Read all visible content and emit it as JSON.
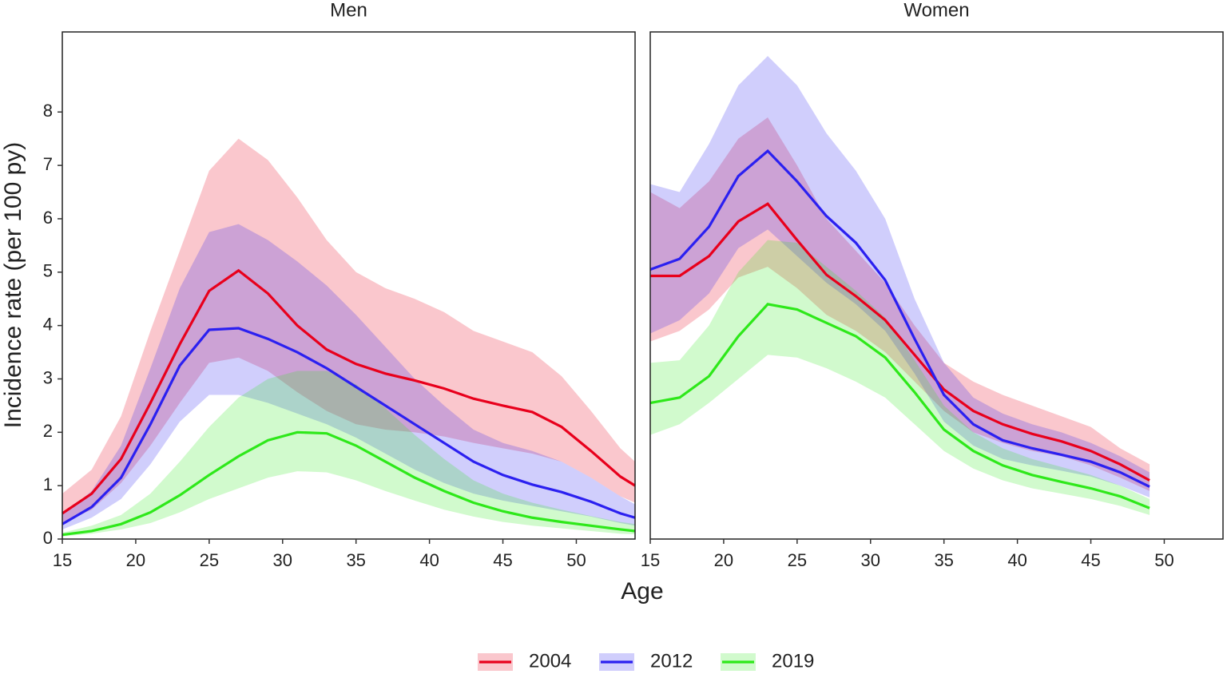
{
  "chart_data": [
    {
      "type": "line",
      "title": "Men",
      "xlabel": "Age",
      "ylabel": "Incidence rate (per 100 py)",
      "x": [
        15,
        17,
        19,
        21,
        23,
        25,
        27,
        29,
        31,
        33,
        35,
        37,
        39,
        41,
        43,
        45,
        47,
        49,
        51,
        53,
        54
      ],
      "xlim": [
        15,
        54
      ],
      "ylim": [
        0,
        9.5
      ],
      "xticks": [
        15,
        20,
        25,
        30,
        35,
        40,
        45,
        50
      ],
      "yticks": [
        0,
        1,
        2,
        3,
        4,
        5,
        6,
        7,
        8
      ],
      "series": [
        {
          "name": "2004",
          "color": "#e8001c",
          "values": [
            0.48,
            0.85,
            1.5,
            2.55,
            3.65,
            4.65,
            5.03,
            4.6,
            4.0,
            3.55,
            3.28,
            3.1,
            2.97,
            2.82,
            2.63,
            2.5,
            2.38,
            2.1,
            1.65,
            1.17,
            1.0
          ],
          "upper": [
            0.85,
            1.3,
            2.3,
            3.9,
            5.4,
            6.9,
            7.5,
            7.1,
            6.4,
            5.6,
            5.0,
            4.7,
            4.5,
            4.25,
            3.9,
            3.7,
            3.5,
            3.05,
            2.4,
            1.7,
            1.45
          ],
          "lower": [
            0.3,
            0.55,
            1.05,
            1.75,
            2.55,
            3.3,
            3.4,
            3.15,
            2.75,
            2.4,
            2.15,
            2.05,
            2.0,
            1.92,
            1.8,
            1.7,
            1.6,
            1.45,
            1.15,
            0.8,
            0.68
          ]
        },
        {
          "name": "2012",
          "color": "#2b20f0",
          "values": [
            0.28,
            0.6,
            1.15,
            2.15,
            3.25,
            3.92,
            3.95,
            3.75,
            3.5,
            3.2,
            2.85,
            2.5,
            2.15,
            1.8,
            1.45,
            1.2,
            1.02,
            0.88,
            0.7,
            0.48,
            0.4
          ],
          "upper": [
            0.45,
            0.9,
            1.75,
            3.2,
            4.7,
            5.75,
            5.9,
            5.6,
            5.2,
            4.75,
            4.2,
            3.6,
            3.0,
            2.5,
            2.05,
            1.8,
            1.65,
            1.45,
            1.15,
            0.8,
            0.65
          ],
          "lower": [
            0.18,
            0.4,
            0.75,
            1.4,
            2.2,
            2.7,
            2.7,
            2.55,
            2.35,
            2.15,
            1.9,
            1.6,
            1.3,
            1.05,
            0.85,
            0.72,
            0.62,
            0.52,
            0.42,
            0.3,
            0.25
          ]
        },
        {
          "name": "2019",
          "color": "#2ee81a",
          "values": [
            0.08,
            0.15,
            0.28,
            0.5,
            0.82,
            1.2,
            1.55,
            1.85,
            2.0,
            1.98,
            1.75,
            1.45,
            1.15,
            0.9,
            0.68,
            0.52,
            0.4,
            0.32,
            0.25,
            0.18,
            0.15
          ],
          "upper": [
            0.12,
            0.25,
            0.45,
            0.85,
            1.45,
            2.1,
            2.65,
            3.0,
            3.15,
            3.15,
            2.9,
            2.45,
            1.95,
            1.5,
            1.1,
            0.85,
            0.68,
            0.55,
            0.43,
            0.32,
            0.28
          ],
          "lower": [
            0.05,
            0.1,
            0.18,
            0.3,
            0.5,
            0.75,
            0.95,
            1.15,
            1.27,
            1.25,
            1.1,
            0.9,
            0.72,
            0.55,
            0.42,
            0.32,
            0.25,
            0.2,
            0.15,
            0.1,
            0.09
          ]
        }
      ]
    },
    {
      "type": "line",
      "title": "Women",
      "x": [
        15,
        17,
        19,
        21,
        23,
        25,
        27,
        29,
        31,
        33,
        35,
        37,
        39,
        41,
        43,
        45,
        47,
        49
      ],
      "xlim": [
        15,
        54
      ],
      "ylim": [
        0,
        9.5
      ],
      "xticks": [
        15,
        20,
        25,
        30,
        35,
        40,
        45,
        50
      ],
      "series": [
        {
          "name": "2004",
          "color": "#e8001c",
          "values": [
            4.93,
            4.93,
            5.3,
            5.95,
            6.28,
            5.6,
            4.95,
            4.55,
            4.1,
            3.45,
            2.8,
            2.4,
            2.15,
            1.97,
            1.83,
            1.65,
            1.4,
            1.1
          ],
          "upper": [
            6.5,
            6.2,
            6.7,
            7.5,
            7.9,
            7.0,
            6.0,
            5.4,
            4.8,
            4.0,
            3.3,
            2.95,
            2.7,
            2.5,
            2.3,
            2.1,
            1.7,
            1.4
          ],
          "lower": [
            3.7,
            3.9,
            4.3,
            4.9,
            5.1,
            4.7,
            4.2,
            3.9,
            3.5,
            2.95,
            2.4,
            2.0,
            1.8,
            1.65,
            1.55,
            1.38,
            1.15,
            0.9
          ]
        },
        {
          "name": "2012",
          "color": "#2b20f0",
          "values": [
            5.05,
            5.25,
            5.85,
            6.8,
            7.27,
            6.7,
            6.05,
            5.55,
            4.85,
            3.75,
            2.7,
            2.15,
            1.85,
            1.7,
            1.58,
            1.45,
            1.25,
            0.98
          ],
          "upper": [
            6.65,
            6.5,
            7.4,
            8.5,
            9.05,
            8.5,
            7.6,
            6.9,
            6.0,
            4.5,
            3.3,
            2.65,
            2.35,
            2.15,
            2.0,
            1.8,
            1.55,
            1.25
          ],
          "lower": [
            3.85,
            4.1,
            4.6,
            5.45,
            5.8,
            5.3,
            4.8,
            4.4,
            3.9,
            3.1,
            2.2,
            1.75,
            1.5,
            1.38,
            1.28,
            1.17,
            1.0,
            0.78
          ]
        },
        {
          "name": "2019",
          "color": "#2ee81a",
          "values": [
            2.55,
            2.65,
            3.05,
            3.8,
            4.4,
            4.3,
            4.05,
            3.8,
            3.4,
            2.75,
            2.05,
            1.65,
            1.38,
            1.2,
            1.07,
            0.95,
            0.8,
            0.58
          ],
          "upper": [
            3.3,
            3.35,
            4.0,
            5.0,
            5.6,
            5.55,
            5.1,
            4.65,
            4.15,
            3.35,
            2.5,
            2.0,
            1.7,
            1.5,
            1.35,
            1.2,
            1.0,
            0.75
          ],
          "lower": [
            1.95,
            2.15,
            2.55,
            3.0,
            3.45,
            3.4,
            3.2,
            2.95,
            2.65,
            2.15,
            1.65,
            1.32,
            1.1,
            0.95,
            0.85,
            0.75,
            0.62,
            0.45
          ]
        }
      ]
    }
  ]
}
